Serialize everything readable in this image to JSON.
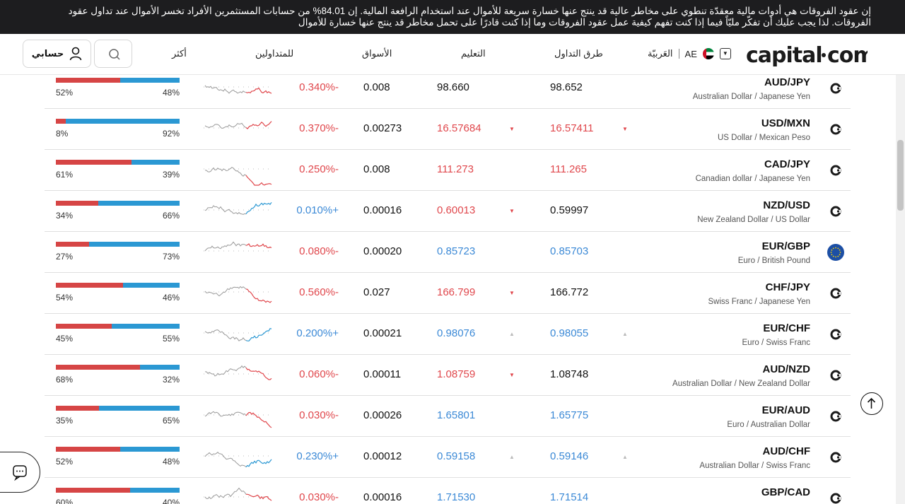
{
  "banner": {
    "text": "إن عقود الفروقات هي أدوات مالية معقدّة تنطوي على مخاطر عالية قد ينتج عنها خسارة سريعة للأموال عند استخدام الرافعة المالية. إن 84.01% من حسابات المستثمرين الأفراد تخسر الأموال عند تداول عقود الفروقات. لذا يجب عليك أن تفكّر مليّاً فيما إذا كنت تفهم كيفية عمل عقود الفروقات وما إذا كنت قادرًا على تحمل مخاطر قد ينتج عنها خسارة للأموال"
  },
  "header": {
    "logo": "capital·com",
    "language": "العَربيّة",
    "region": "AE",
    "nav": [
      "طرق التداول",
      "التعليم",
      "الأسواق",
      "للمتداولين",
      "أكثر"
    ],
    "account_label": "حسابي"
  },
  "colors": {
    "red": "#e0474c",
    "blue": "#3b89d6",
    "sent_red": "#d64545",
    "sent_blue": "#2b98d3"
  },
  "rows": [
    {
      "symbol": "AUD/JPY",
      "name": "Australian Dollar / Japanese Yen",
      "sell": "98.652",
      "sell_color": "black",
      "sell_indicator": "",
      "buy": "98.660",
      "buy_color": "black",
      "buy_indicator": "",
      "spread": "0.008",
      "change": "0.340%-",
      "change_dir": "down",
      "sent_left": 52,
      "sent_right": 48,
      "icon": "capital-icon"
    },
    {
      "symbol": "USD/MXN",
      "name": "US Dollar / Mexican Peso",
      "sell": "16.57411",
      "sell_color": "red",
      "sell_indicator": "down",
      "buy": "16.57684",
      "buy_color": "red",
      "buy_indicator": "down",
      "spread": "0.00273",
      "change": "0.370%-",
      "change_dir": "down",
      "sent_left": 8,
      "sent_right": 92,
      "icon": "capital-icon"
    },
    {
      "symbol": "CAD/JPY",
      "name": "Canadian dollar / Japanese Yen",
      "sell": "111.265",
      "sell_color": "red",
      "sell_indicator": "",
      "buy": "111.273",
      "buy_color": "red",
      "buy_indicator": "",
      "spread": "0.008",
      "change": "0.250%-",
      "change_dir": "down",
      "sent_left": 61,
      "sent_right": 39,
      "icon": "capital-icon"
    },
    {
      "symbol": "NZD/USD",
      "name": "New Zealand Dollar / US Dollar",
      "sell": "0.59997",
      "sell_color": "black",
      "sell_indicator": "",
      "buy": "0.60013",
      "buy_color": "red",
      "buy_indicator": "down",
      "spread": "0.00016",
      "change": "0.010%+",
      "change_dir": "up",
      "sent_left": 34,
      "sent_right": 66,
      "icon": "capital-icon"
    },
    {
      "symbol": "EUR/GBP",
      "name": "Euro / British Pound",
      "sell": "0.85703",
      "sell_color": "blue",
      "sell_indicator": "",
      "buy": "0.85723",
      "buy_color": "blue",
      "buy_indicator": "",
      "spread": "0.00020",
      "change": "0.080%-",
      "change_dir": "down",
      "sent_left": 27,
      "sent_right": 73,
      "icon": "eu-flag-icon"
    },
    {
      "symbol": "CHF/JPY",
      "name": "Swiss Franc / Japanese Yen",
      "sell": "166.772",
      "sell_color": "black",
      "sell_indicator": "",
      "buy": "166.799",
      "buy_color": "red",
      "buy_indicator": "down",
      "spread": "0.027",
      "change": "0.560%-",
      "change_dir": "down",
      "sent_left": 54,
      "sent_right": 46,
      "icon": "capital-icon"
    },
    {
      "symbol": "EUR/CHF",
      "name": "Euro / Swiss Franc",
      "sell": "0.98055",
      "sell_color": "blue",
      "sell_indicator": "up",
      "buy": "0.98076",
      "buy_color": "blue",
      "buy_indicator": "up",
      "spread": "0.00021",
      "change": "0.200%+",
      "change_dir": "up",
      "sent_left": 45,
      "sent_right": 55,
      "icon": "capital-icon"
    },
    {
      "symbol": "AUD/NZD",
      "name": "Australian Dollar / New Zealand Dollar",
      "sell": "1.08748",
      "sell_color": "black",
      "sell_indicator": "",
      "buy": "1.08759",
      "buy_color": "red",
      "buy_indicator": "down",
      "spread": "0.00011",
      "change": "0.060%-",
      "change_dir": "down",
      "sent_left": 68,
      "sent_right": 32,
      "icon": "capital-icon"
    },
    {
      "symbol": "EUR/AUD",
      "name": "Euro / Australian Dollar",
      "sell": "1.65775",
      "sell_color": "blue",
      "sell_indicator": "",
      "buy": "1.65801",
      "buy_color": "blue",
      "buy_indicator": "",
      "spread": "0.00026",
      "change": "0.030%-",
      "change_dir": "down",
      "sent_left": 35,
      "sent_right": 65,
      "icon": "capital-icon"
    },
    {
      "symbol": "AUD/CHF",
      "name": "Australian Dollar / Swiss Franc",
      "sell": "0.59146",
      "sell_color": "blue",
      "sell_indicator": "up",
      "buy": "0.59158",
      "buy_color": "blue",
      "buy_indicator": "up",
      "spread": "0.00012",
      "change": "0.230%+",
      "change_dir": "up",
      "sent_left": 52,
      "sent_right": 48,
      "icon": "capital-icon"
    },
    {
      "symbol": "GBP/CAD",
      "name": "",
      "sell": "1.71514",
      "sell_color": "blue",
      "sell_indicator": "",
      "buy": "1.71530",
      "buy_color": "blue",
      "buy_indicator": "",
      "spread": "0.00016",
      "change": "0.030%-",
      "change_dir": "down",
      "sent_left": 60,
      "sent_right": 40,
      "icon": "capital-icon"
    }
  ]
}
